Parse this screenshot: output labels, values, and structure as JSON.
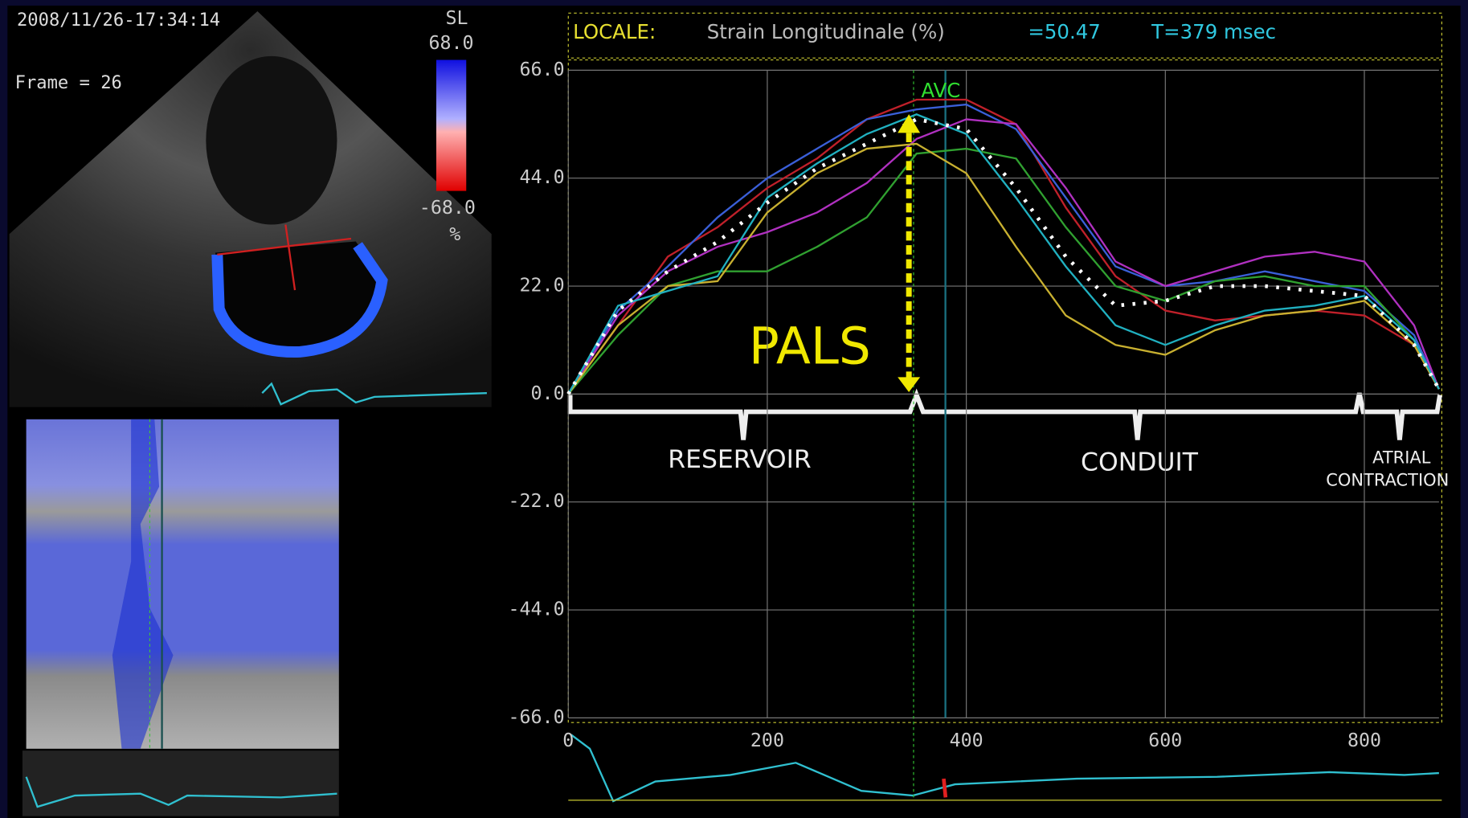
{
  "image_panel": {
    "timestamp": "2008/11/26-17:34:14",
    "frame": "Frame = 26",
    "scale_name": "SL",
    "scale_max": "68.0",
    "scale_min": "-68.0",
    "scale_unit": "%"
  },
  "chart_data": {
    "type": "line",
    "title": "LOCALE:",
    "subtitle": "Strain Longitudinale (%)",
    "readout_value": "=50.47",
    "readout_time": "T=379 msec",
    "annotations": {
      "avc": "AVC",
      "pals": "PALS",
      "phase_1": "RESERVOIR",
      "phase_2": "CONDUIT",
      "phase_3_line1": "ATRIAL",
      "phase_3_line2": "CONTRACTION"
    },
    "avc_x": 347,
    "cursor_x": 379,
    "x": [
      0,
      50,
      100,
      150,
      200,
      250,
      300,
      350,
      400,
      450,
      500,
      550,
      600,
      650,
      700,
      750,
      800,
      850,
      875
    ],
    "series": [
      {
        "color": "#c0202a",
        "values": [
          0,
          14,
          28,
          34,
          42,
          48,
          56,
          60,
          60,
          55,
          38,
          24,
          17,
          15,
          16,
          17,
          16,
          10,
          1
        ]
      },
      {
        "color": "#3a5fd8",
        "values": [
          0,
          17,
          26,
          36,
          44,
          50,
          56,
          58,
          59,
          54,
          40,
          26,
          22,
          23,
          25,
          23,
          21,
          12,
          1
        ]
      },
      {
        "color": "#b030c0",
        "values": [
          0,
          16,
          25,
          30,
          33,
          37,
          43,
          52,
          56,
          55,
          42,
          27,
          22,
          25,
          28,
          29,
          27,
          14,
          1
        ]
      },
      {
        "color": "#30a030",
        "values": [
          0,
          12,
          22,
          25,
          25,
          30,
          36,
          49,
          50,
          48,
          34,
          22,
          19,
          23,
          24,
          22,
          22,
          11,
          1
        ]
      },
      {
        "color": "#c8b030",
        "values": [
          0,
          14,
          22,
          23,
          37,
          45,
          50,
          51,
          45,
          30,
          16,
          10,
          8,
          13,
          16,
          17,
          19,
          10,
          1
        ]
      },
      {
        "color": "#20b0c0",
        "values": [
          0,
          18,
          21,
          24,
          40,
          47,
          53,
          57,
          53,
          40,
          26,
          14,
          10,
          14,
          17,
          18,
          20,
          11,
          1
        ]
      },
      {
        "color": "#ffffff",
        "style": "dotted",
        "values": [
          0,
          17,
          25,
          31,
          39,
          46,
          51,
          56,
          54,
          42,
          28,
          18,
          19,
          22,
          22,
          21,
          20,
          10,
          1
        ]
      }
    ],
    "xlim": [
      0,
      875
    ],
    "ylim": [
      -66,
      66
    ],
    "xticks": [
      0,
      200,
      400,
      600,
      800
    ],
    "yticks": [
      {
        "value": 66,
        "label": "66.0"
      },
      {
        "value": 44,
        "label": "44.0"
      },
      {
        "value": 22,
        "label": "22.0"
      },
      {
        "value": 0,
        "label": "0.0"
      },
      {
        "value": -22,
        "label": "-22.0"
      },
      {
        "value": -44,
        "label": "-44.0"
      },
      {
        "value": -66,
        "label": "-66.0"
      }
    ],
    "grid": true
  }
}
